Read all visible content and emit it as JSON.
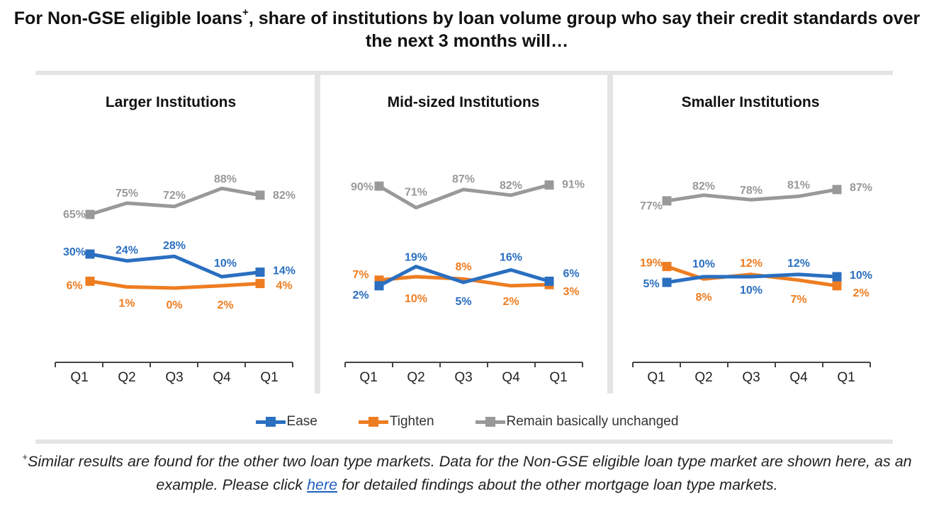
{
  "title": {
    "prefix": "For Non-GSE eligible loans",
    "marker": "+",
    "suffix": ", share of institutions by loan volume group who say their credit standards over the next 3 months will…"
  },
  "colors": {
    "ease": "#2a6fc0",
    "tighten": "#ee7d21",
    "unchanged": "#999999",
    "band": "#e4e4e4"
  },
  "legend": [
    {
      "key": "ease",
      "label": "Ease",
      "color": "#2a6fc0"
    },
    {
      "key": "tighten",
      "label": "Tighten",
      "color": "#ee7d21"
    },
    {
      "key": "unchanged",
      "label": "Remain basically unchanged",
      "color": "#999999"
    }
  ],
  "chart_data": [
    {
      "type": "line",
      "title": "Larger Institutions",
      "categories": [
        "Q1",
        "Q2",
        "Q3",
        "Q4",
        "Q1"
      ],
      "series": [
        {
          "name": "Ease",
          "values": [
            30,
            24,
            28,
            10,
            14
          ],
          "labels": [
            "30%",
            "24%",
            "28%",
            "10%",
            "14%"
          ]
        },
        {
          "name": "Tighten",
          "values": [
            6,
            1,
            0,
            2,
            4
          ],
          "labels": [
            "6%",
            "1%",
            "0%",
            "2%",
            "4%"
          ]
        },
        {
          "name": "Remain basically unchanged",
          "values": [
            65,
            75,
            72,
            88,
            82
          ],
          "labels": [
            "65%",
            "75%",
            "72%",
            "88%",
            "82%"
          ]
        }
      ],
      "ylim": [
        0,
        100
      ]
    },
    {
      "type": "line",
      "title": "Mid-sized Institutions",
      "categories": [
        "Q1",
        "Q2",
        "Q3",
        "Q4",
        "Q1"
      ],
      "series": [
        {
          "name": "Ease",
          "values": [
            2,
            19,
            5,
            16,
            6
          ],
          "labels": [
            "2%",
            "19%",
            "5%",
            "16%",
            "6%"
          ]
        },
        {
          "name": "Tighten",
          "values": [
            7,
            10,
            8,
            2,
            3
          ],
          "labels": [
            "7%",
            "10%",
            "8%",
            "2%",
            "3%"
          ]
        },
        {
          "name": "Remain basically unchanged",
          "values": [
            90,
            71,
            87,
            82,
            91
          ],
          "labels": [
            "90%",
            "71%",
            "87%",
            "82%",
            "91%"
          ]
        }
      ],
      "ylim": [
        0,
        100
      ]
    },
    {
      "type": "line",
      "title": "Smaller Institutions",
      "categories": [
        "Q1",
        "Q2",
        "Q3",
        "Q4",
        "Q1"
      ],
      "series": [
        {
          "name": "Ease",
          "values": [
            5,
            10,
            10,
            12,
            10
          ],
          "labels": [
            "5%",
            "10%",
            "10%",
            "12%",
            "10%"
          ]
        },
        {
          "name": "Tighten",
          "values": [
            19,
            8,
            12,
            7,
            2
          ],
          "labels": [
            "19%",
            "8%",
            "12%",
            "7%",
            "2%"
          ]
        },
        {
          "name": "Remain basically unchanged",
          "values": [
            77,
            82,
            78,
            81,
            87
          ],
          "labels": [
            "77%",
            "82%",
            "78%",
            "81%",
            "87%"
          ]
        }
      ],
      "ylim": [
        0,
        100
      ]
    }
  ],
  "footnote": {
    "marker": "+",
    "before": "Similar results are found for the other two loan type markets. Data for the Non-GSE eligible loan type market are shown here, as an example. Please click ",
    "link": "here",
    "after": " for detailed findings about the other mortgage loan type markets."
  }
}
